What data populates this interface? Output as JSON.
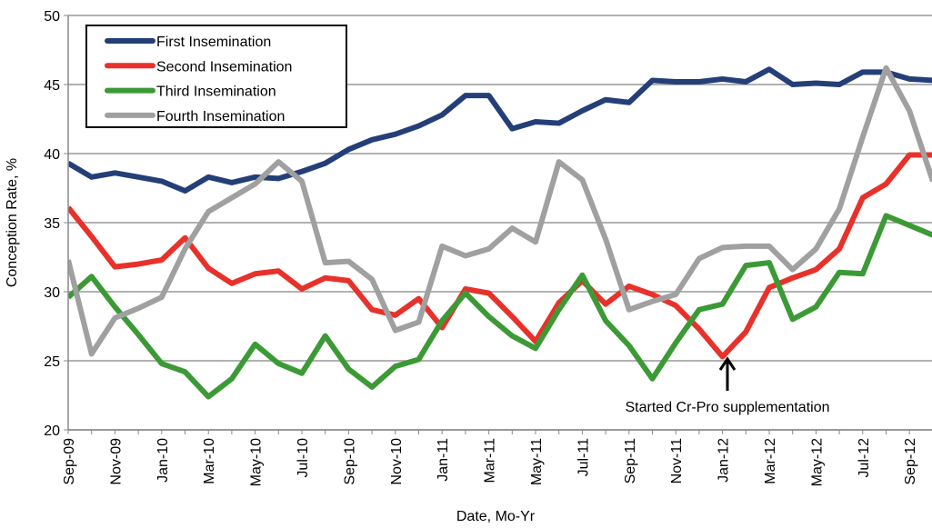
{
  "chart_data": {
    "type": "line",
    "y_label": "Conception Rate, %",
    "x_label": "Date, Mo-Yr",
    "annotation": "Started Cr-Pro supplementation",
    "categories": [
      "Sep-09",
      null,
      "Nov-09",
      null,
      "Jan-10",
      null,
      "Mar-10",
      null,
      "May-10",
      null,
      "Jul-10",
      null,
      "Sep-10",
      null,
      "Nov-10",
      null,
      "Jan-11",
      null,
      "Mar-11",
      null,
      "May-11",
      null,
      "Jul-11",
      null,
      "Sep-11",
      null,
      "Nov-11",
      null,
      "Jan-12",
      null,
      "Mar-12",
      null,
      "May-12",
      null,
      "Jul-12",
      null,
      "Sep-12",
      null
    ],
    "series": [
      {
        "name": "First Insemination",
        "color": "#243f78",
        "values": [
          39.3,
          38.3,
          38.6,
          38.3,
          38.0,
          37.3,
          38.3,
          37.9,
          38.3,
          38.2,
          38.7,
          39.3,
          40.3,
          41.0,
          41.4,
          42.0,
          42.8,
          44.2,
          44.2,
          41.8,
          42.3,
          42.2,
          43.1,
          43.9,
          43.7,
          45.3,
          45.2,
          45.2,
          45.4,
          45.2,
          46.1,
          45.0,
          45.1,
          45.0,
          45.9,
          45.9,
          45.4,
          45.3
        ]
      },
      {
        "name": "Second Insemination",
        "color": "#e8312a",
        "values": [
          36.1,
          34.0,
          31.8,
          32.0,
          32.3,
          33.9,
          31.7,
          30.6,
          31.3,
          31.5,
          30.2,
          31.0,
          30.8,
          28.7,
          28.3,
          29.5,
          27.4,
          30.2,
          29.9,
          28.2,
          26.4,
          29.2,
          30.8,
          29.1,
          30.4,
          29.8,
          29.0,
          27.3,
          25.3,
          27.1,
          30.3,
          31.0,
          31.6,
          33.1,
          36.8,
          37.8,
          39.9,
          39.9
        ]
      },
      {
        "name": "Third Insemination",
        "color": "#3c9a36",
        "values": [
          29.6,
          31.1,
          28.9,
          26.9,
          24.8,
          24.2,
          22.4,
          23.7,
          26.2,
          24.8,
          24.1,
          26.8,
          24.4,
          23.1,
          24.6,
          25.1,
          27.9,
          29.9,
          28.2,
          26.8,
          25.9,
          28.7,
          31.2,
          27.9,
          26.1,
          23.7,
          26.3,
          28.7,
          29.1,
          31.9,
          32.1,
          28.0,
          28.9,
          31.4,
          31.3,
          35.5,
          34.8,
          34.1
        ]
      },
      {
        "name": "Fourth Insemination",
        "color": "#a0a0a0",
        "values": [
          32.3,
          25.5,
          28.1,
          28.8,
          29.6,
          33.1,
          35.8,
          36.8,
          37.8,
          39.4,
          38.0,
          32.1,
          32.2,
          30.9,
          27.2,
          27.8,
          33.3,
          32.6,
          33.1,
          34.6,
          33.6,
          39.4,
          38.1,
          33.8,
          28.7,
          29.3,
          29.8,
          32.4,
          33.2,
          33.3,
          33.3,
          31.6,
          33.1,
          36.0,
          41.2,
          46.2,
          43.1,
          38.0
        ]
      }
    ],
    "ylim": [
      20,
      50
    ],
    "yticks": [
      20,
      25,
      30,
      35,
      40,
      45,
      50
    ],
    "grid": true,
    "legend": "upper left"
  }
}
